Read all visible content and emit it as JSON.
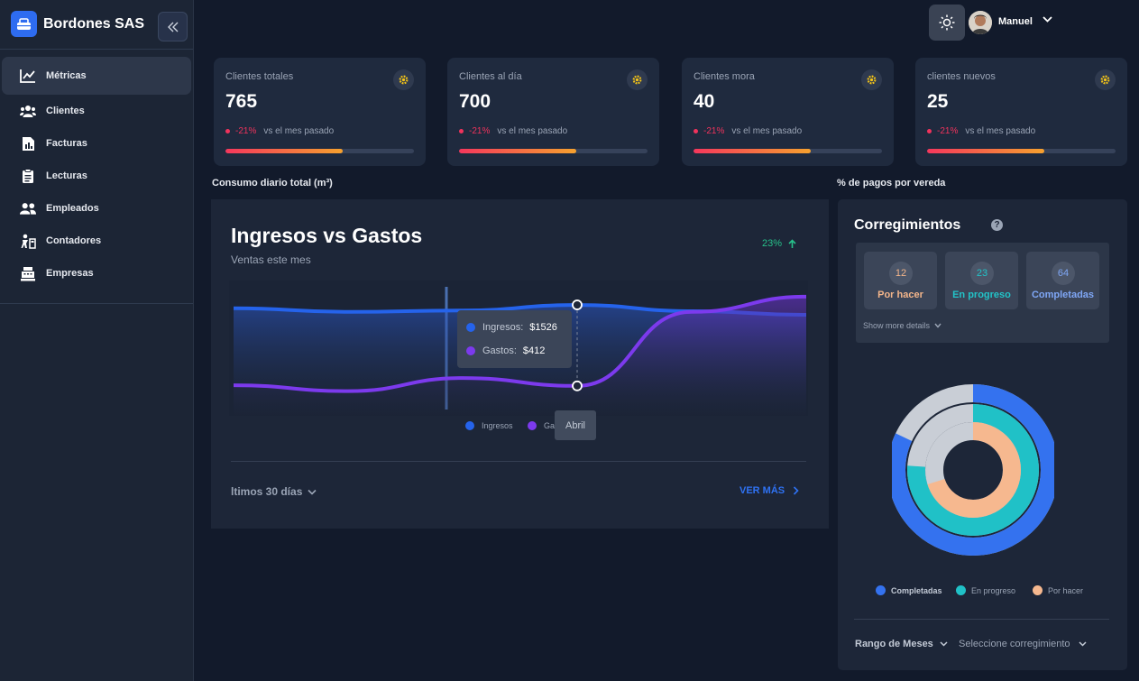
{
  "sidebar": {
    "brand": "Bordones SAS",
    "items": [
      {
        "label": "Métricas",
        "icon": "chart-line-icon"
      },
      {
        "label": "Clientes",
        "icon": "users-icon"
      },
      {
        "label": "Facturas",
        "icon": "invoice-icon"
      },
      {
        "label": "Lecturas",
        "icon": "clipboard-icon"
      },
      {
        "label": "Empleados",
        "icon": "employees-icon"
      },
      {
        "label": "Contadores",
        "icon": "meter-icon"
      },
      {
        "label": "Empresas",
        "icon": "register-icon"
      }
    ]
  },
  "header": {
    "user_name": "Manuel"
  },
  "kpis": [
    {
      "title": "Clientes totales",
      "value": "765",
      "delta": "-21%",
      "delta_text": "vs el mes pasado",
      "progress": 0.62
    },
    {
      "title": "Clientes al día",
      "value": "700",
      "delta": "-21%",
      "delta_text": "vs el mes pasado",
      "progress": 0.62
    },
    {
      "title": "Clientes mora",
      "value": "40",
      "delta": "-21%",
      "delta_text": "vs el mes pasado",
      "progress": 0.62
    },
    {
      "title": "clientes nuevos",
      "value": "25",
      "delta": "-21%",
      "delta_text": "vs el mes pasado",
      "progress": 0.62
    }
  ],
  "sections": {
    "left": "Consumo diario total (m³)",
    "right": "% de pagos por vereda"
  },
  "main_chart": {
    "title": "Ingresos vs Gastos",
    "subtitle": "Ventas este mes",
    "growth": "23%",
    "tooltip": {
      "ingresos_label": "Ingresos:",
      "ingresos_value": "$1526",
      "gastos_label": "Gastos:",
      "gastos_value": "$412"
    },
    "x_tooltip": "Abril",
    "legend": {
      "ingresos": "Ingresos",
      "gastos": "Ga"
    },
    "range_label": "ltimos 30 días",
    "more_label": "VER MÁS",
    "colors": {
      "ingresos": "#2563eb",
      "gastos": "#7c3aed"
    }
  },
  "chart_data": {
    "type": "area",
    "series": [
      {
        "name": "Ingresos",
        "values": [
          1480,
          1430,
          1450,
          1526,
          1440,
          1390
        ]
      },
      {
        "name": "Gastos",
        "values": [
          420,
          340,
          520,
          412,
          1430,
          1640
        ]
      }
    ],
    "title": "Ingresos vs Gastos",
    "ylim": [
      0,
      1800
    ],
    "grid": false,
    "legend": "bottom"
  },
  "right_panel": {
    "title": "Corregimientos",
    "statuses": [
      {
        "count": "12",
        "label": "Por hacer",
        "color": "#f3b58a"
      },
      {
        "count": "23",
        "label": "En progreso",
        "color": "#22c3c8"
      },
      {
        "count": "64",
        "label": "Completadas",
        "color": "#7fa7f6"
      }
    ],
    "show_more": "Show more details",
    "donut_legend": [
      {
        "label": "Completadas",
        "color": "#3472ef"
      },
      {
        "label": "En progreso",
        "color": "#20c1c7"
      },
      {
        "label": "Por hacer",
        "color": "#f6b88f"
      }
    ],
    "donut_rings": [
      {
        "name": "Completadas",
        "fraction": 0.82
      },
      {
        "name": "En progreso",
        "fraction": 0.76
      },
      {
        "name": "Por hacer",
        "fraction": 0.7
      }
    ],
    "filter_range": "Rango de Meses",
    "filter_corregimiento": "Seleccione corregimiento"
  }
}
